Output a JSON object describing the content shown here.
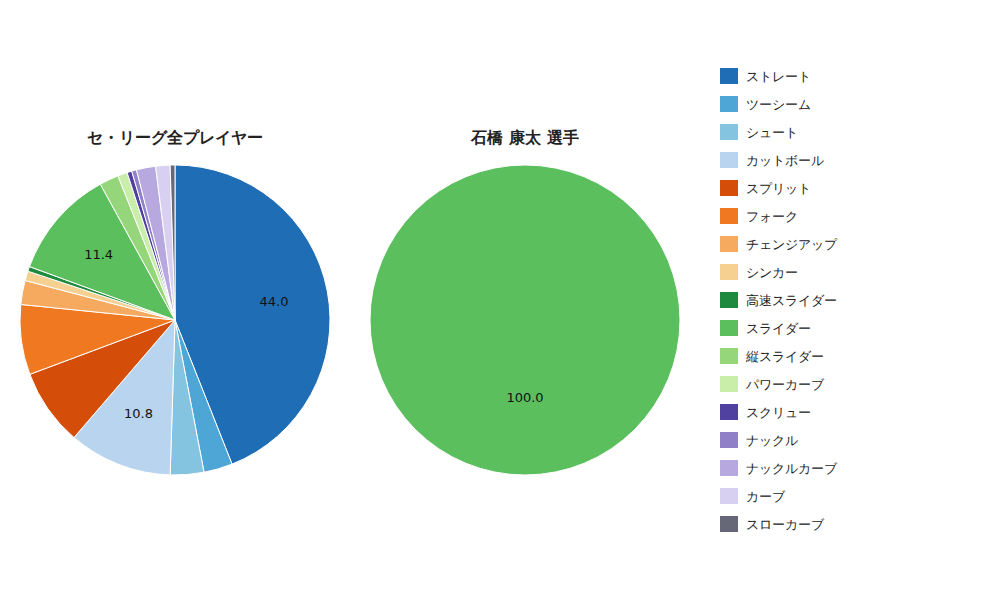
{
  "chart_data": [
    {
      "type": "pie",
      "title": "セ・リーグ全プレイヤー",
      "categories": [
        "ストレート",
        "ツーシーム",
        "シュート",
        "カットボール",
        "スプリット",
        "フォーク",
        "チェンジアップ",
        "シンカー",
        "高速スライダー",
        "スライダー",
        "縦スライダー",
        "パワーカーブ",
        "スクリュー",
        "ナックル",
        "ナックルカーブ",
        "カーブ",
        "スローカーブ"
      ],
      "values": [
        44.0,
        3.0,
        3.5,
        10.8,
        8.0,
        7.3,
        2.5,
        1.0,
        0.5,
        11.4,
        2.0,
        1.0,
        0.5,
        0.5,
        2.0,
        1.5,
        0.5
      ],
      "value_labels": [
        "44.0",
        null,
        null,
        "10.8",
        null,
        null,
        null,
        null,
        null,
        "11.4",
        null,
        null,
        null,
        null,
        null,
        null,
        null
      ],
      "colors": [
        "#1f6eb5",
        "#4da6d6",
        "#85c4e0",
        "#b8d4ee",
        "#d44e0a",
        "#f07820",
        "#f5aa60",
        "#f5d090",
        "#1e8a3e",
        "#5bbf5e",
        "#96d67a",
        "#c8eeaa",
        "#5040a0",
        "#9080c8",
        "#b8a8e0",
        "#d8d0f0",
        "#666878"
      ],
      "data_labels": true,
      "legend": "right"
    },
    {
      "type": "pie",
      "title": "石橋 康太 選手",
      "values": [
        100.0
      ],
      "value_labels": [
        "100.0"
      ],
      "colors": [
        "#5bbf5e"
      ],
      "data_labels": true
    }
  ]
}
